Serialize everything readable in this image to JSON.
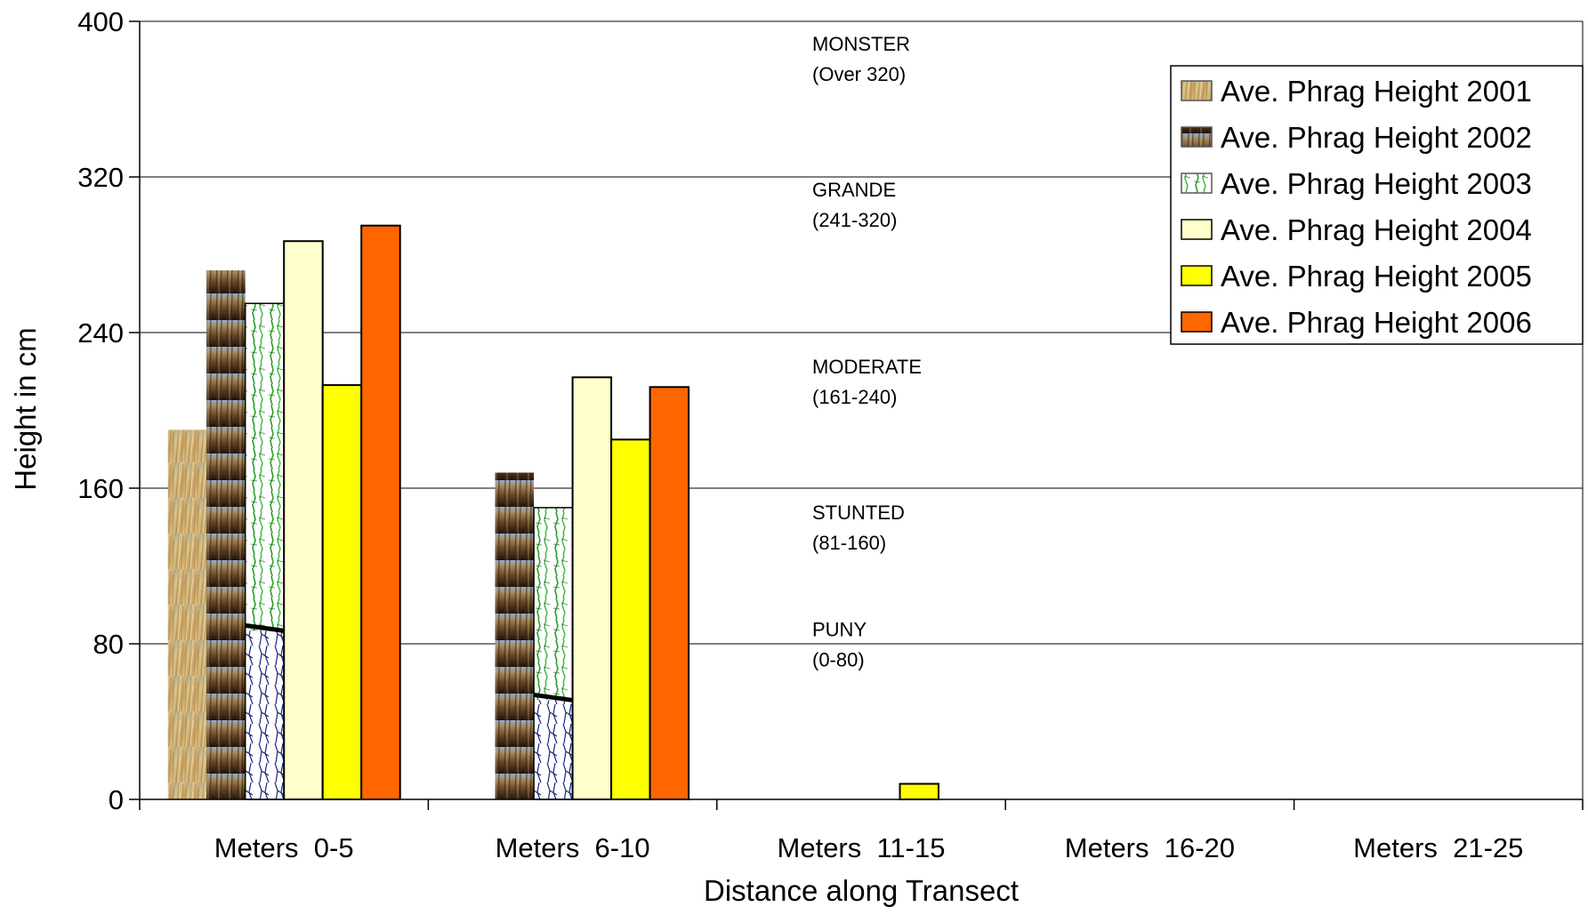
{
  "chart_data": {
    "type": "bar",
    "xlabel": "Distance along Transect",
    "ylabel": "Height in cm",
    "ylim": [
      0,
      400
    ],
    "yticks": [
      0,
      80,
      160,
      240,
      320,
      400
    ],
    "grid": true,
    "legend_position": "top-right",
    "categories": [
      "Meters  0-5",
      "Meters  6-10",
      "Meters  11-15",
      "Meters  16-20",
      "Meters  21-25"
    ],
    "series": [
      {
        "name": "Ave. Phrag Height 2001",
        "values": [
          190,
          0,
          0,
          0,
          0
        ],
        "fill": "#d8c08a",
        "pattern": "photo-grass"
      },
      {
        "name": "Ave. Phrag Height 2002",
        "values": [
          272,
          168,
          0,
          0,
          0
        ],
        "fill": "#7a5a32",
        "pattern": "photo-reeds"
      },
      {
        "name": "Ave. Phrag Height 2003",
        "values": [
          255,
          150,
          0,
          0,
          0
        ],
        "fill": "#ffffff",
        "pattern": "drawing-roots"
      },
      {
        "name": "Ave. Phrag Height 2004",
        "values": [
          287,
          217,
          0,
          0,
          0
        ],
        "fill": "#ffffcc"
      },
      {
        "name": "Ave. Phrag Height 2005",
        "values": [
          213,
          185,
          8,
          0,
          0
        ],
        "fill": "#ffff00"
      },
      {
        "name": "Ave. Phrag Height 2006",
        "values": [
          295,
          212,
          0,
          0,
          0
        ],
        "fill": "#ff6600"
      }
    ],
    "annotations": [
      {
        "label": "MONSTER",
        "range": "(Over 320)",
        "y_top": 385
      },
      {
        "label": "GRANDE",
        "range": "(241-320)",
        "y_top": 310
      },
      {
        "label": "MODERATE",
        "range": "(161-240)",
        "y_top": 219
      },
      {
        "label": "STUNTED",
        "range": "(81-160)",
        "y_top": 144
      },
      {
        "label": "PUNY",
        "range": "(0-80)",
        "y_top": 84
      }
    ]
  }
}
